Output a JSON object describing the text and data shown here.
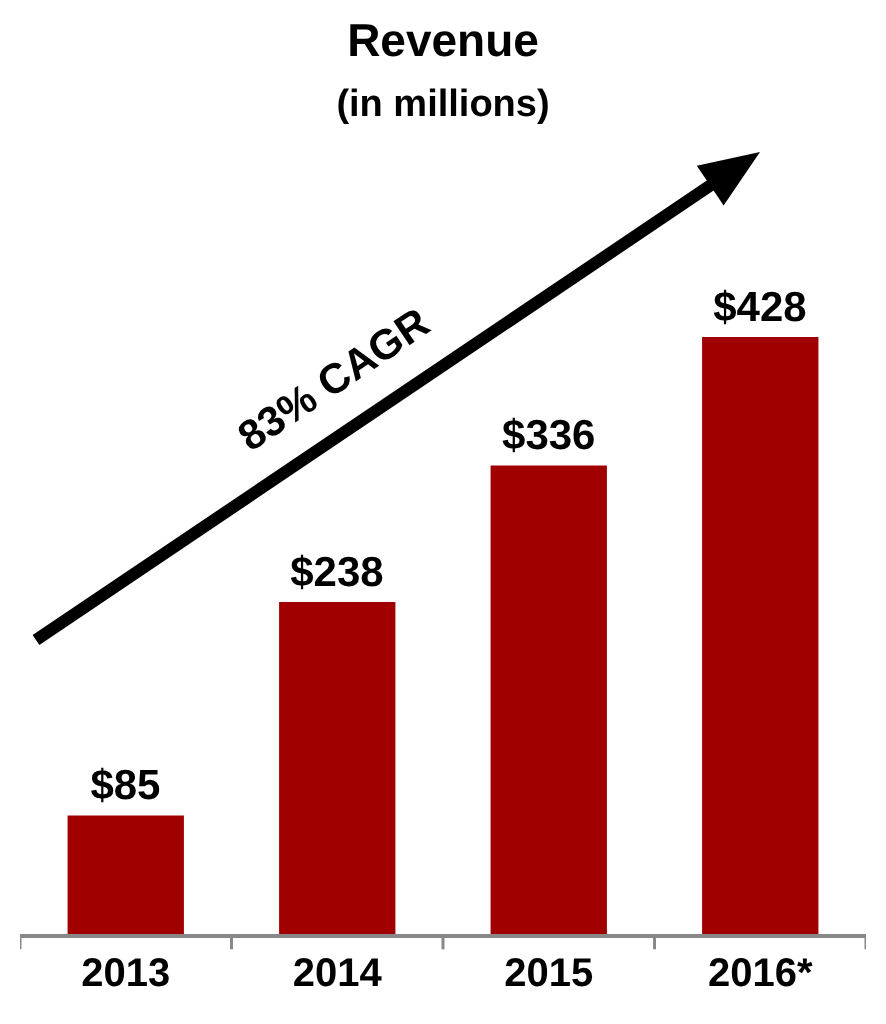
{
  "chart_data": {
    "type": "bar",
    "title": "Revenue",
    "subtitle": "(in millions)",
    "categories": [
      "2013",
      "2014",
      "2015",
      "2016*"
    ],
    "values": [
      85,
      238,
      336,
      428
    ],
    "value_labels": [
      "$85",
      "$238",
      "$336",
      "$428"
    ],
    "color": "#a00000",
    "annotations": [
      "83% CAGR"
    ],
    "grid": false
  }
}
